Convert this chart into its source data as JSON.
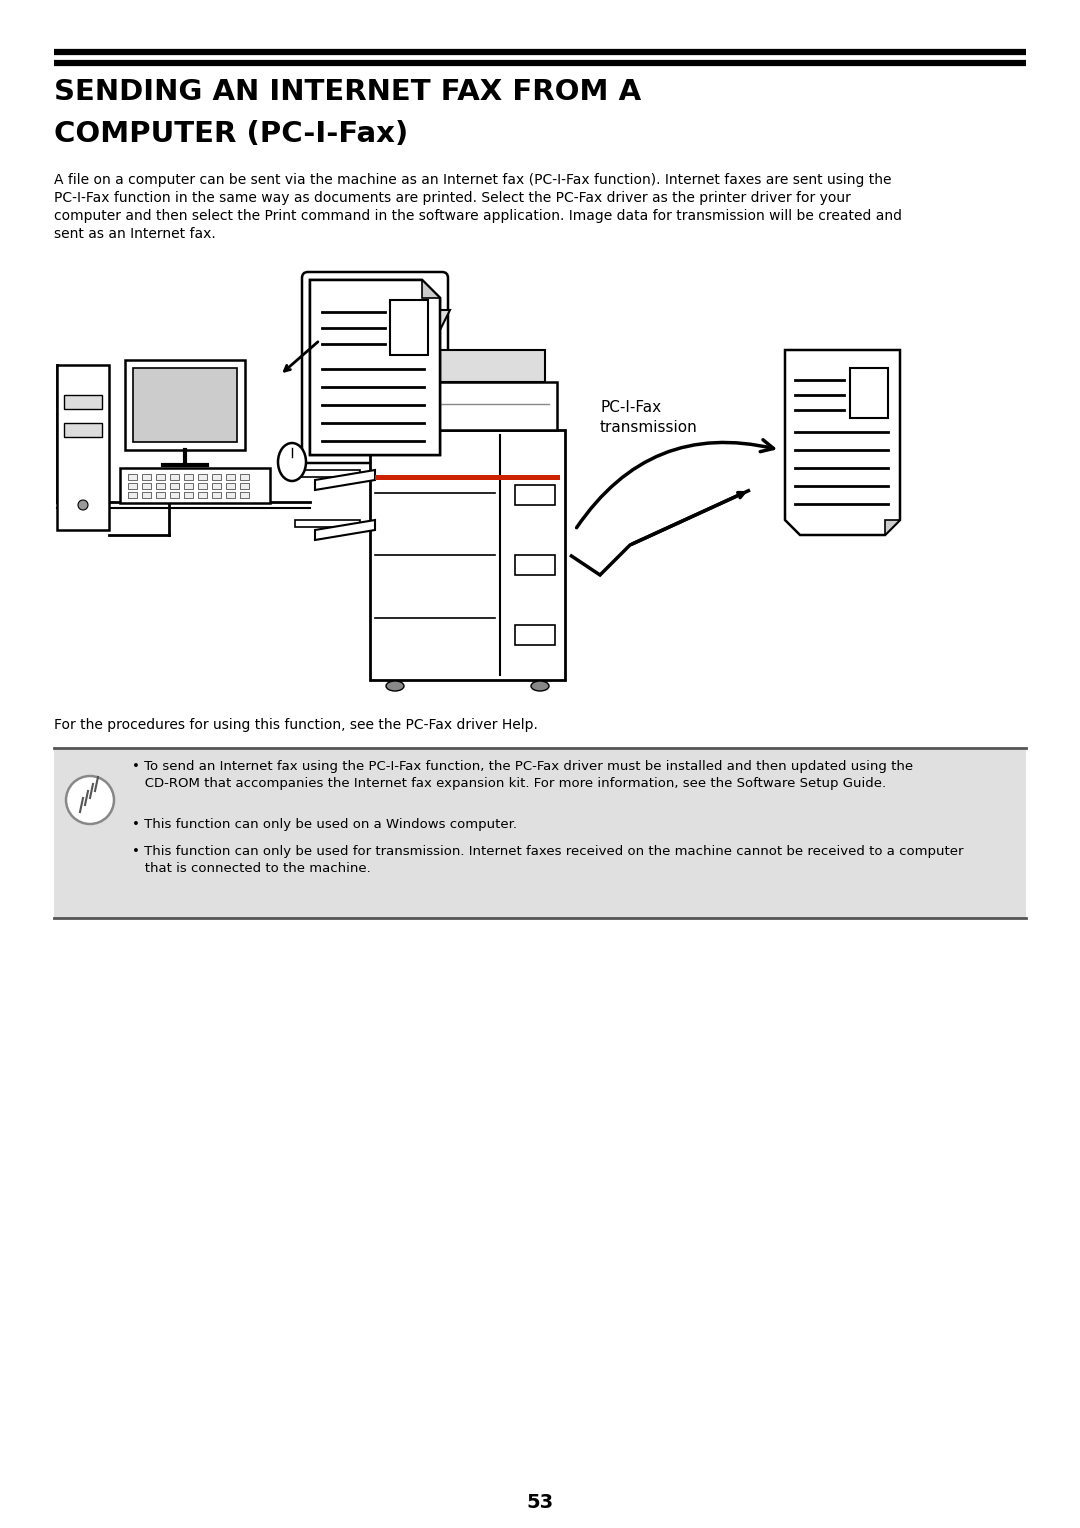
{
  "title_line1": "SENDING AN INTERNET FAX FROM A",
  "title_line2": "COMPUTER (PC-I-Fax)",
  "body_text": "A file on a computer can be sent via the machine as an Internet fax (PC-I-Fax function). Internet faxes are sent using the\nPC-I-Fax function in the same way as documents are printed. Select the PC-Fax driver as the printer driver for your\ncomputer and then select the Print command in the software application. Image data for transmission will be created and\nsent as an Internet fax.",
  "caption_line1": "PC-I-Fax",
  "caption_line2": "transmission",
  "procedure_text": "For the procedures for using this function, see the PC-Fax driver Help.",
  "note_bullet1": "• To send an Internet fax using the PC-I-Fax function, the PC-Fax driver must be installed and then updated using the\n   CD-ROM that accompanies the Internet fax expansion kit. For more information, see the Software Setup Guide.",
  "note_bullet2": "• This function can only be used on a Windows computer.",
  "note_bullet3": "• This function can only be used for transmission. Internet faxes received on the machine cannot be received to a computer\n   that is connected to the machine.",
  "page_number": "53",
  "bg_color": "#ffffff",
  "text_color": "#000000",
  "note_bg_color": "#e0e0e0",
  "title_fontsize": 21,
  "body_fontsize": 10.0,
  "note_fontsize": 9.5
}
